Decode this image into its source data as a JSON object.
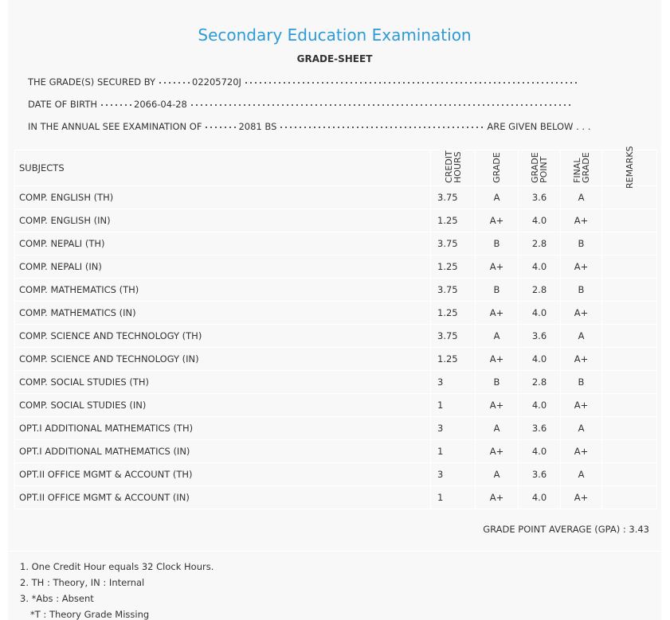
{
  "header": {
    "title": "Secondary Education Examination",
    "subtitle": "GRADE-SHEET"
  },
  "info": [
    {
      "label": "THE GRADE(S) SECURED BY",
      "value": "02205720J"
    },
    {
      "label": "DATE OF BIRTH",
      "value": "2066-04-28"
    },
    {
      "label": "IN THE ANNUAL SEE EXAMINATION OF",
      "value": "2081 BS",
      "suffix": "ARE GIVEN BELOW . . ."
    }
  ],
  "table": {
    "columns": [
      "SUBJECTS",
      "CREDIT HOURS",
      "GRADE",
      "GRADE POINT",
      "FINAL GRADE",
      "REMARKS"
    ],
    "rows": [
      [
        "COMP. ENGLISH (TH)",
        "3.75",
        "A",
        "3.6",
        "A"
      ],
      [
        "COMP. ENGLISH (IN)",
        "1.25",
        "A+",
        "4.0",
        "A+"
      ],
      [
        "COMP. NEPALI (TH)",
        "3.75",
        "B",
        "2.8",
        "B"
      ],
      [
        "COMP. NEPALI (IN)",
        "1.25",
        "A+",
        "4.0",
        "A+"
      ],
      [
        "COMP. MATHEMATICS (TH)",
        "3.75",
        "B",
        "2.8",
        "B"
      ],
      [
        "COMP. MATHEMATICS (IN)",
        "1.25",
        "A+",
        "4.0",
        "A+"
      ],
      [
        "COMP. SCIENCE AND TECHNOLOGY (TH)",
        "3.75",
        "A",
        "3.6",
        "A"
      ],
      [
        "COMP. SCIENCE AND TECHNOLOGY (IN)",
        "1.25",
        "A+",
        "4.0",
        "A+"
      ],
      [
        "COMP. SOCIAL STUDIES (TH)",
        "3",
        "B",
        "2.8",
        "B"
      ],
      [
        "COMP. SOCIAL STUDIES (IN)",
        "1",
        "A+",
        "4.0",
        "A+"
      ],
      [
        "OPT.I ADDITIONAL MATHEMATICS (TH)",
        "3",
        "A",
        "3.6",
        "A"
      ],
      [
        "OPT.I ADDITIONAL MATHEMATICS (IN)",
        "1",
        "A+",
        "4.0",
        "A+"
      ],
      [
        "OPT.II OFFICE MGMT & ACCOUNT (TH)",
        "3",
        "A",
        "3.6",
        "A"
      ],
      [
        "OPT.II OFFICE MGMT & ACCOUNT (IN)",
        "1",
        "A+",
        "4.0",
        "A+"
      ]
    ]
  },
  "gpa": {
    "label": "GRADE POINT AVERAGE (GPA) :",
    "value": "3.43"
  },
  "notes": [
    "1. One Credit Hour equals 32 Clock Hours.",
    "2. TH : Theory, IN : Internal",
    "3. *Abs : Absent",
    "*T : Theory Grade Missing"
  ]
}
